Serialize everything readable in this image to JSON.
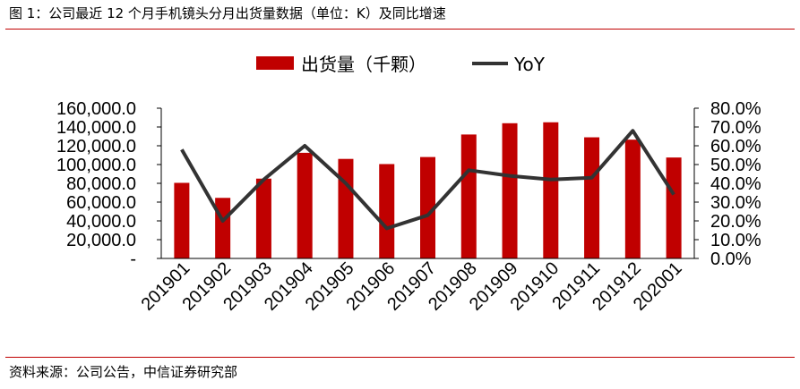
{
  "header": {
    "title": "图 1：公司最近 12 个月手机镜头分月出货量数据（单位：K）及同比增速"
  },
  "footer": {
    "source": "资料来源：公司公告，中信证券研究部"
  },
  "colors": {
    "bar": "#c00000",
    "line": "#333333",
    "rule": "#c00000"
  },
  "chart_data": {
    "type": "bar",
    "title": "",
    "categories": [
      "201901",
      "201902",
      "201903",
      "201904",
      "201905",
      "201906",
      "201907",
      "201908",
      "201909",
      "201910",
      "201911",
      "201912",
      "202001"
    ],
    "series": [
      {
        "name": "出货量（千颗）",
        "type": "bar",
        "axis": "left",
        "values": [
          80500,
          64500,
          85000,
          112500,
          106000,
          100500,
          108000,
          132000,
          144000,
          145000,
          129000,
          126500,
          107500
        ]
      },
      {
        "name": "YoY",
        "type": "line",
        "axis": "right",
        "values": [
          0.58,
          0.2,
          0.42,
          0.6,
          0.4,
          0.16,
          0.23,
          0.47,
          0.44,
          0.42,
          0.43,
          0.68,
          0.34
        ]
      }
    ],
    "y_left": {
      "min": 0,
      "max": 160000,
      "step": 20000,
      "tick_labels": [
        "-",
        "20,000.0",
        "40,000.0",
        "60,000.0",
        "80,000.0",
        "100,000.0",
        "120,000.0",
        "140,000.0",
        "160,000.0"
      ]
    },
    "y_right": {
      "min": 0,
      "max": 0.8,
      "step": 0.1,
      "tick_labels": [
        "0.0%",
        "10.0%",
        "20.0%",
        "30.0%",
        "40.0%",
        "50.0%",
        "60.0%",
        "70.0%",
        "80.0%"
      ]
    },
    "legend": {
      "position": "top-center"
    },
    "grid": false
  }
}
